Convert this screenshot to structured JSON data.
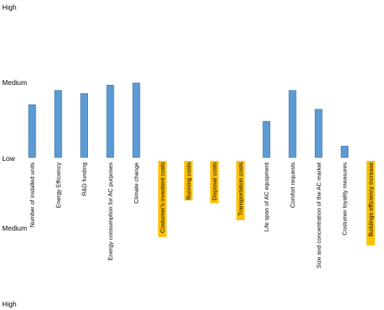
{
  "chart_data": {
    "type": "bar",
    "title": "",
    "xlabel": "",
    "ylabel": "",
    "y_tick_labels": {
      "top_high": "High",
      "top_medium": "Medium",
      "baseline": "Low",
      "bottom_medium": "Medium",
      "bottom_high": "High"
    },
    "ylim": [
      -2,
      2
    ],
    "grid": false,
    "categories": [
      "Number of installed units",
      "Energy Efficiency",
      "R&D funding",
      "Energy consumption for AC purposes",
      "Climate change",
      "Costumer's investent costs",
      "Running costs",
      "Disposal costs",
      "Transportation costs",
      "Life span of AC equipment",
      "Comfort requests",
      "Size and concentration of the AC market",
      "Costumer loyality measures",
      "Buildings efficiency increase"
    ],
    "values": [
      0.7,
      0.89,
      0.85,
      0.96,
      0.99,
      0,
      0,
      0,
      0,
      0.48,
      0.89,
      0.64,
      0.15,
      0
    ],
    "highlighted": [
      false,
      false,
      false,
      false,
      false,
      true,
      true,
      true,
      true,
      false,
      false,
      false,
      false,
      true
    ],
    "bar_color": "#5b9bd5",
    "bar_edge_color": "#41719c",
    "highlight_color": "#ffc000"
  }
}
